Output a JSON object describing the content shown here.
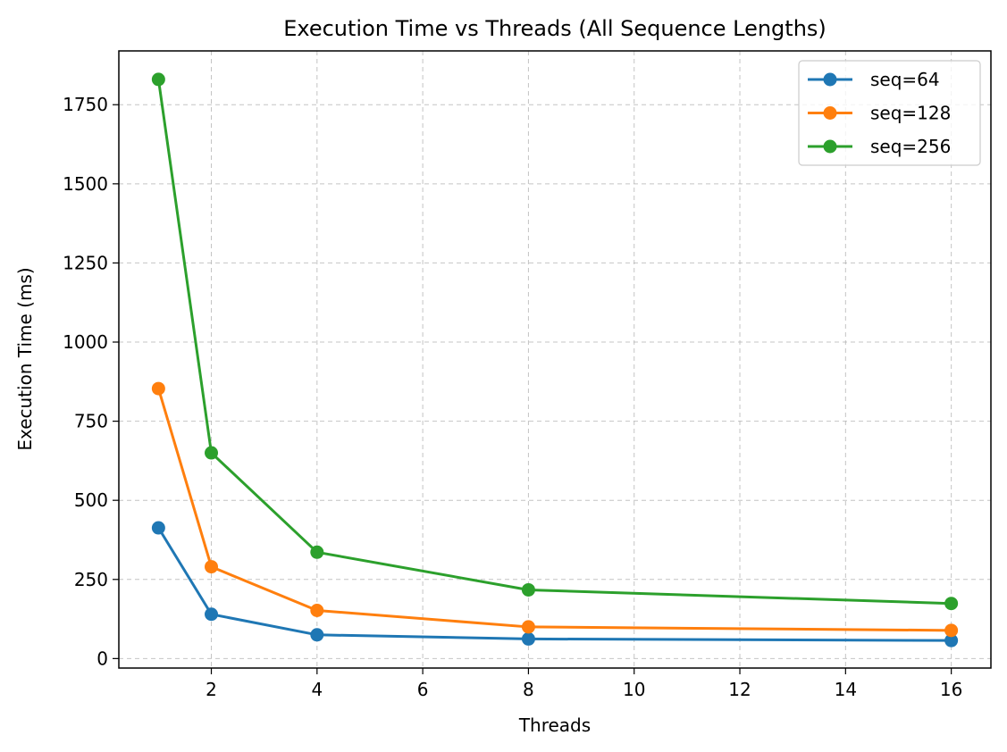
{
  "chart_data": {
    "type": "line",
    "title": "Execution Time vs Threads (All Sequence Lengths)",
    "xlabel": "Threads",
    "ylabel": "Execution Time (ms)",
    "x": [
      1,
      2,
      4,
      8,
      16
    ],
    "xlim": [
      0.25,
      16.75
    ],
    "ylim": [
      -30,
      1920
    ],
    "xticks": [
      2,
      4,
      6,
      8,
      10,
      12,
      14,
      16
    ],
    "yticks": [
      0,
      250,
      500,
      750,
      1000,
      1250,
      1500,
      1750
    ],
    "grid": true,
    "grid_style": "dashed",
    "legend_position": "top-right",
    "marker": "circle",
    "series": [
      {
        "name": "seq=64",
        "color": "#1f77b4",
        "values": [
          413,
          140,
          75,
          62,
          57
        ]
      },
      {
        "name": "seq=128",
        "color": "#ff7f0e",
        "values": [
          853,
          290,
          152,
          100,
          89
        ]
      },
      {
        "name": "seq=256",
        "color": "#2ca02c",
        "values": [
          1830,
          650,
          336,
          217,
          174
        ]
      }
    ]
  }
}
